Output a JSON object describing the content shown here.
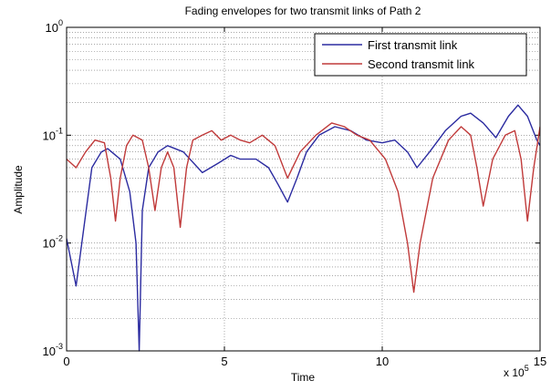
{
  "chart_data": {
    "type": "line",
    "title": "Fading envelopes for two transmit links of Path 2",
    "xlabel": "Time",
    "ylabel": "Amplitude",
    "x_multiplier": {
      "base": "x 10",
      "exponent": "5"
    },
    "xlim": [
      0,
      15
    ],
    "xticks": [
      0,
      5,
      10,
      15
    ],
    "ylim": [
      0.001,
      1
    ],
    "yscale": "log",
    "yticks": [
      {
        "value": 0.001,
        "label": "10^-3"
      },
      {
        "value": 0.01,
        "label": "10^-2"
      },
      {
        "value": 0.1,
        "label": "10^-1"
      },
      {
        "value": 1,
        "label": "10^0"
      }
    ],
    "yminorticks": [
      0.002,
      0.003,
      0.004,
      0.005,
      0.006,
      0.007,
      0.008,
      0.009,
      0.02,
      0.03,
      0.04,
      0.05,
      0.06,
      0.07,
      0.08,
      0.09,
      0.2,
      0.3,
      0.4,
      0.5,
      0.6,
      0.7,
      0.8,
      0.9
    ],
    "grid": true,
    "legend": "upper right",
    "series": [
      {
        "name": "First transmit link",
        "color": "#2b2ba0",
        "x": [
          0,
          0.3,
          0.8,
          1.1,
          1.3,
          1.7,
          2.0,
          2.2,
          2.3,
          2.4,
          2.6,
          2.9,
          3.2,
          3.7,
          4.3,
          4.8,
          5.2,
          5.5,
          6.0,
          6.4,
          6.7,
          7.0,
          7.3,
          7.6,
          8.0,
          8.5,
          9.0,
          9.5,
          10.0,
          10.4,
          10.8,
          11.1,
          11.5,
          12.0,
          12.5,
          12.8,
          13.2,
          13.6,
          14.0,
          14.3,
          14.6,
          14.9,
          15
        ],
        "values": [
          0.011,
          0.004,
          0.05,
          0.07,
          0.075,
          0.06,
          0.03,
          0.01,
          0.001,
          0.02,
          0.05,
          0.07,
          0.08,
          0.07,
          0.045,
          0.055,
          0.065,
          0.06,
          0.06,
          0.05,
          0.035,
          0.024,
          0.04,
          0.07,
          0.1,
          0.12,
          0.11,
          0.09,
          0.085,
          0.09,
          0.07,
          0.05,
          0.07,
          0.11,
          0.15,
          0.16,
          0.13,
          0.095,
          0.15,
          0.19,
          0.15,
          0.09,
          0.08
        ]
      },
      {
        "name": "Second transmit link",
        "color": "#c03a3a",
        "x": [
          0,
          0.3,
          0.6,
          0.9,
          1.2,
          1.4,
          1.55,
          1.7,
          1.9,
          2.1,
          2.4,
          2.6,
          2.8,
          3.0,
          3.2,
          3.4,
          3.6,
          3.8,
          4.0,
          4.3,
          4.6,
          4.9,
          5.2,
          5.5,
          5.8,
          6.2,
          6.6,
          7.0,
          7.4,
          7.9,
          8.4,
          8.8,
          9.2,
          9.6,
          10.1,
          10.5,
          10.8,
          11.0,
          11.2,
          11.6,
          12.1,
          12.5,
          12.8,
          13.0,
          13.2,
          13.5,
          13.9,
          14.2,
          14.4,
          14.6,
          14.8,
          15
        ],
        "values": [
          0.06,
          0.05,
          0.07,
          0.09,
          0.085,
          0.04,
          0.016,
          0.04,
          0.08,
          0.1,
          0.09,
          0.05,
          0.02,
          0.05,
          0.07,
          0.05,
          0.014,
          0.05,
          0.09,
          0.1,
          0.11,
          0.09,
          0.1,
          0.09,
          0.085,
          0.1,
          0.08,
          0.04,
          0.07,
          0.1,
          0.13,
          0.12,
          0.1,
          0.09,
          0.06,
          0.03,
          0.01,
          0.0035,
          0.01,
          0.04,
          0.09,
          0.12,
          0.1,
          0.05,
          0.022,
          0.06,
          0.1,
          0.11,
          0.06,
          0.016,
          0.05,
          0.12
        ]
      }
    ]
  }
}
